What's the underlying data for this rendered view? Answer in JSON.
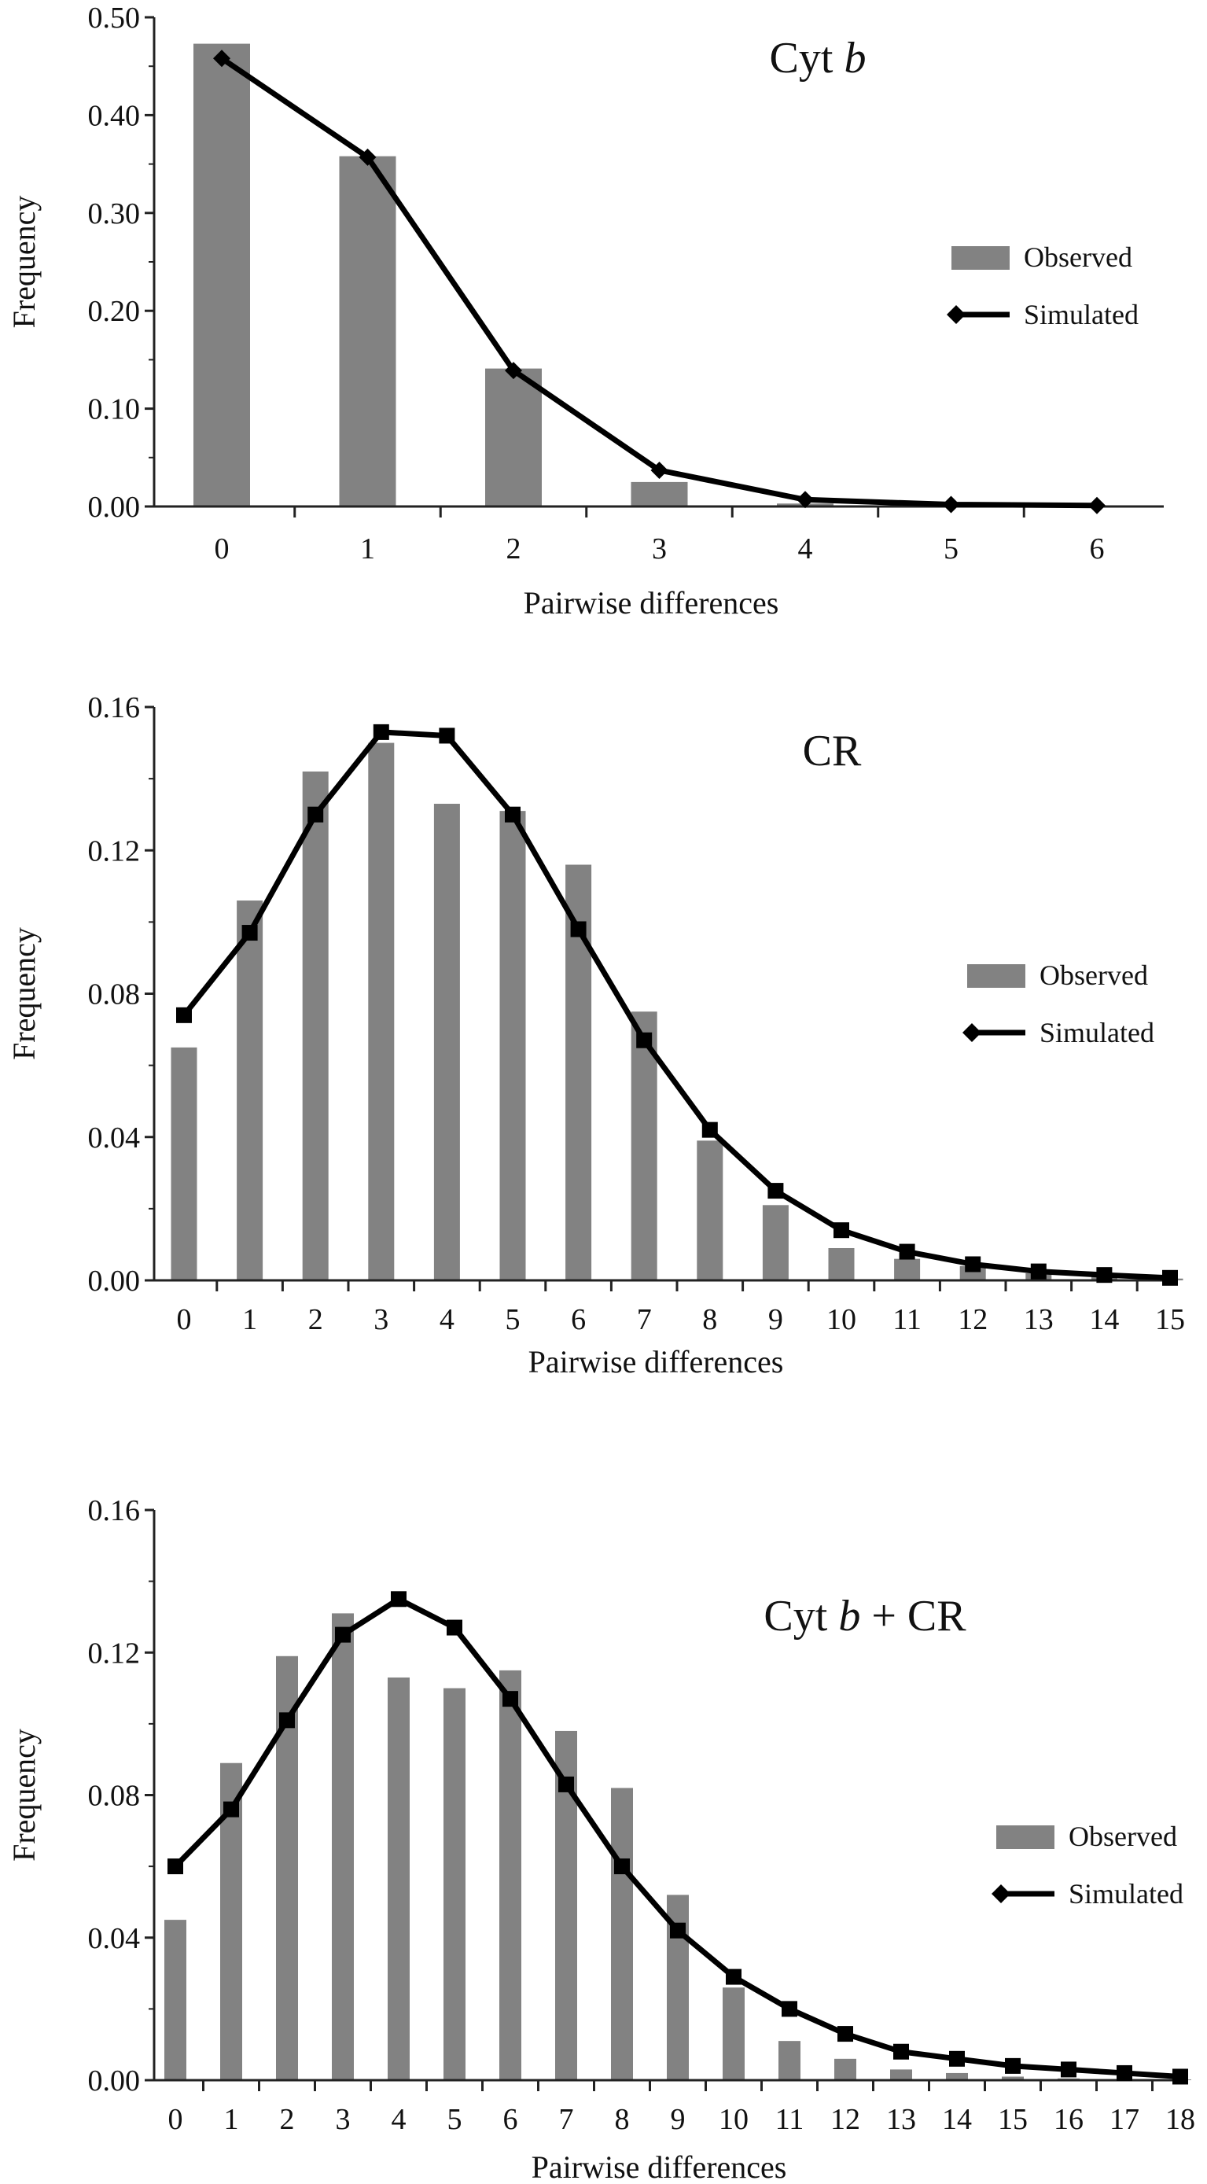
{
  "colors": {
    "observed": "#828282",
    "simulated": "#000000",
    "axis": "#222222"
  },
  "icons": {
    "simulated_marker": "diamond-marker-icon",
    "observed_swatch": "bar-swatch-icon"
  },
  "chart_data": [
    {
      "type": "bar",
      "title_parts": [
        {
          "text": "Cyt ",
          "italic": false
        },
        {
          "text": "b",
          "italic": true
        }
      ],
      "xlabel": "Pairwise differences",
      "ylabel": "Frequency",
      "categories": [
        "0",
        "1",
        "2",
        "3",
        "4",
        "5",
        "6"
      ],
      "ylim": [
        0,
        0.5
      ],
      "yticks": [
        "0.00",
        "0.10",
        "0.20",
        "0.30",
        "0.40",
        "0.50"
      ],
      "legend": {
        "position": "right",
        "items": [
          "Observed",
          "Simulated"
        ]
      },
      "series": [
        {
          "name": "Observed",
          "kind": "bar",
          "values": [
            0.473,
            0.358,
            0.141,
            0.025,
            0.003,
            0.0,
            0.0
          ]
        },
        {
          "name": "Simulated",
          "kind": "line",
          "values": [
            0.458,
            0.357,
            0.139,
            0.037,
            0.007,
            0.002,
            0.001
          ]
        }
      ]
    },
    {
      "type": "bar",
      "title_parts": [
        {
          "text": "CR",
          "italic": false
        }
      ],
      "xlabel": "Pairwise differences",
      "ylabel": "Frequency",
      "categories": [
        "0",
        "1",
        "2",
        "3",
        "4",
        "5",
        "6",
        "7",
        "8",
        "9",
        "10",
        "11",
        "12",
        "13",
        "14",
        "15"
      ],
      "ylim": [
        0,
        0.16
      ],
      "yticks": [
        "0.00",
        "0.04",
        "0.08",
        "0.12",
        "0.16"
      ],
      "legend": {
        "position": "right",
        "items": [
          "Observed",
          "Simulated"
        ]
      },
      "series": [
        {
          "name": "Observed",
          "kind": "bar",
          "values": [
            0.065,
            0.106,
            0.142,
            0.15,
            0.133,
            0.131,
            0.116,
            0.075,
            0.039,
            0.021,
            0.009,
            0.006,
            0.004,
            0.002,
            0.001,
            0.0005
          ]
        },
        {
          "name": "Simulated",
          "kind": "line",
          "values": [
            0.074,
            0.097,
            0.13,
            0.153,
            0.152,
            0.13,
            0.098,
            0.067,
            0.042,
            0.025,
            0.014,
            0.008,
            0.0045,
            0.0025,
            0.0015,
            0.0007
          ]
        }
      ]
    },
    {
      "type": "bar",
      "title_parts": [
        {
          "text": "Cyt ",
          "italic": false
        },
        {
          "text": "b",
          "italic": true
        },
        {
          "text": " + CR",
          "italic": false
        }
      ],
      "xlabel": "Pairwise differences",
      "ylabel": "Frequency",
      "categories": [
        "0",
        "1",
        "2",
        "3",
        "4",
        "5",
        "6",
        "7",
        "8",
        "9",
        "10",
        "11",
        "12",
        "13",
        "14",
        "15",
        "16",
        "17",
        "18"
      ],
      "ylim": [
        0,
        0.16
      ],
      "yticks": [
        "0.00",
        "0.04",
        "0.08",
        "0.12",
        "0.16"
      ],
      "legend": {
        "position": "right",
        "items": [
          "Observed",
          "Simulated"
        ]
      },
      "series": [
        {
          "name": "Observed",
          "kind": "bar",
          "values": [
            0.045,
            0.089,
            0.119,
            0.131,
            0.113,
            0.11,
            0.115,
            0.098,
            0.082,
            0.052,
            0.026,
            0.011,
            0.006,
            0.003,
            0.002,
            0.001,
            0.0005,
            0.0003,
            0.0002
          ]
        },
        {
          "name": "Simulated",
          "kind": "line",
          "values": [
            0.06,
            0.076,
            0.101,
            0.125,
            0.135,
            0.127,
            0.107,
            0.083,
            0.06,
            0.042,
            0.029,
            0.02,
            0.013,
            0.008,
            0.006,
            0.004,
            0.003,
            0.002,
            0.001
          ]
        }
      ]
    }
  ]
}
